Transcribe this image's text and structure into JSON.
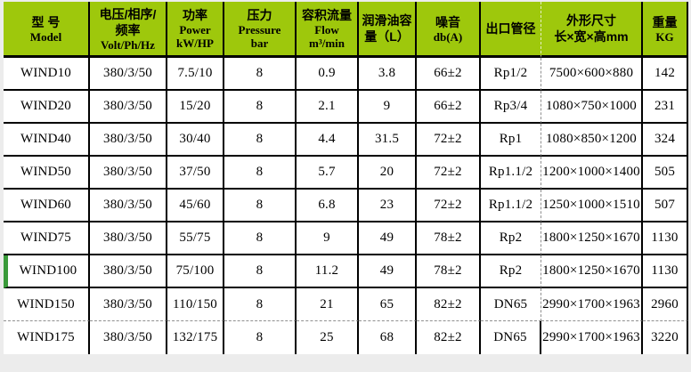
{
  "colors": {
    "header_bg": "#9ec80c",
    "row_marker_green": "#3a9a3a",
    "grid_black": "#000000",
    "dashed_gray": "#8f8f8f",
    "dashed_light_on_green": "#e4eec2",
    "page_bg": "#ececec",
    "cell_bg": "#ffffff"
  },
  "table": {
    "header": {
      "cols": [
        {
          "zh": "型 号",
          "en": "Model"
        },
        {
          "zh": "电压/相序/\n频率",
          "en": "Volt/Ph/Hz"
        },
        {
          "zh": "功率",
          "en": "Power\nkW/HP"
        },
        {
          "zh": "压力",
          "en": "Pressure\nbar"
        },
        {
          "zh": "容积流量",
          "en": "Flow\nm³/min"
        },
        {
          "zh": "润滑油容\n量（L）",
          "en": ""
        },
        {
          "zh": "噪音",
          "en": "db(A)"
        },
        {
          "zh": "出口管径",
          "en": ""
        },
        {
          "zh": "外形尺寸\n长×宽×高mm",
          "en": ""
        },
        {
          "zh": "重量",
          "en": "KG"
        }
      ]
    }
  },
  "chart_data": {
    "type": "table",
    "columns": [
      "型号 Model",
      "电压/相序/频率 Volt/Ph/Hz",
      "功率 Power kW/HP",
      "压力 Pressure bar",
      "容积流量 Flow m³/min",
      "润滑油容量（L）",
      "噪音 db(A)",
      "出口管径",
      "外形尺寸 长×宽×高mm",
      "重量 KG"
    ],
    "rows": [
      [
        "WIND10",
        "380/3/50",
        "7.5/10",
        "8",
        "0.9",
        "3.8",
        "66±2",
        "Rp1/2",
        "7500×600×880",
        "142"
      ],
      [
        "WIND20",
        "380/3/50",
        "15/20",
        "8",
        "2.1",
        "9",
        "66±2",
        "Rp3/4",
        "1080×750×1000",
        "231"
      ],
      [
        "WIND40",
        "380/3/50",
        "30/40",
        "8",
        "4.4",
        "31.5",
        "72±2",
        "Rp1",
        "1080×850×1200",
        "324"
      ],
      [
        "WIND50",
        "380/3/50",
        "37/50",
        "8",
        "5.7",
        "20",
        "72±2",
        "Rp1.1/2",
        "1200×1000×1400",
        "505"
      ],
      [
        "WIND60",
        "380/3/50",
        "45/60",
        "8",
        "6.8",
        "23",
        "72±2",
        "Rp1.1/2",
        "1250×1000×1510",
        "507"
      ],
      [
        "WIND75",
        "380/3/50",
        "55/75",
        "8",
        "9",
        "49",
        "78±2",
        "Rp2",
        "1800×1250×1670",
        "1130"
      ],
      [
        "WIND100",
        "380/3/50",
        "75/100",
        "8",
        "11.2",
        "49",
        "78±2",
        "Rp2",
        "1800×1250×1670",
        "1130"
      ],
      [
        "WIND150",
        "380/3/50",
        "110/150",
        "8",
        "21",
        "65",
        "82±2",
        "DN65",
        "2990×1700×1963",
        "2960"
      ],
      [
        "WIND175",
        "380/3/50",
        "132/175",
        "8",
        "25",
        "68",
        "82±2",
        "DN65",
        "2990×1700×1963",
        "3220"
      ]
    ]
  }
}
